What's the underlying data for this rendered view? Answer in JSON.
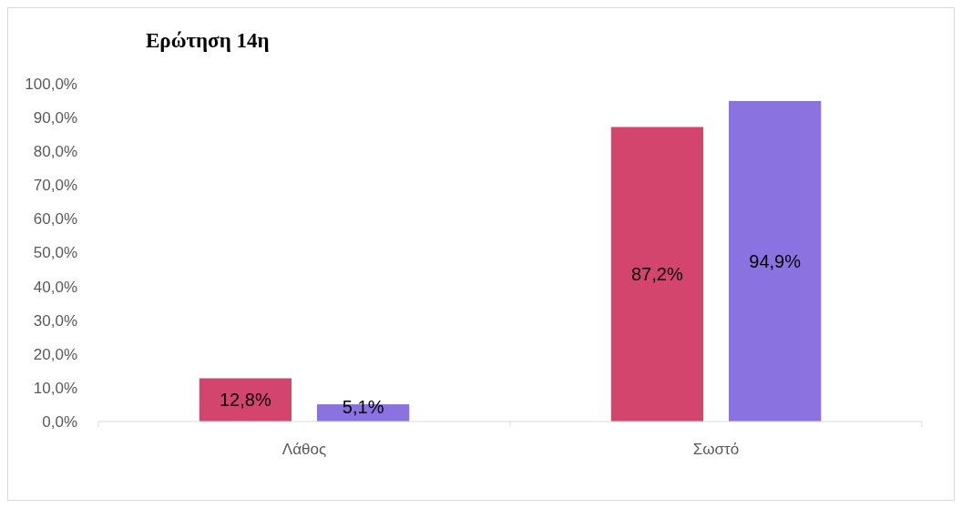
{
  "chart_data": {
    "type": "bar",
    "title": "Ερώτηση 14η",
    "categories": [
      "Λάθος",
      "Σωστό"
    ],
    "series": [
      {
        "color": "#d4456e",
        "values": [
          12.8,
          87.2
        ],
        "value_labels": [
          "12,8%",
          "87,2%"
        ]
      },
      {
        "color": "#8a72e0",
        "values": [
          5.1,
          94.9
        ],
        "value_labels": [
          "5,1%",
          "94,9%"
        ]
      }
    ],
    "ylim": [
      0,
      100
    ],
    "yticks": [
      {
        "value": 0,
        "label": "0,0%"
      },
      {
        "value": 10,
        "label": "10,0%"
      },
      {
        "value": 20,
        "label": "20,0%"
      },
      {
        "value": 30,
        "label": "30,0%"
      },
      {
        "value": 40,
        "label": "40,0%"
      },
      {
        "value": 50,
        "label": "50,0%"
      },
      {
        "value": 60,
        "label": "60,0%"
      },
      {
        "value": 70,
        "label": "70,0%"
      },
      {
        "value": 80,
        "label": "80,0%"
      },
      {
        "value": 90,
        "label": "90,0%"
      },
      {
        "value": 100,
        "label": "100,0%"
      }
    ],
    "grid": false
  }
}
